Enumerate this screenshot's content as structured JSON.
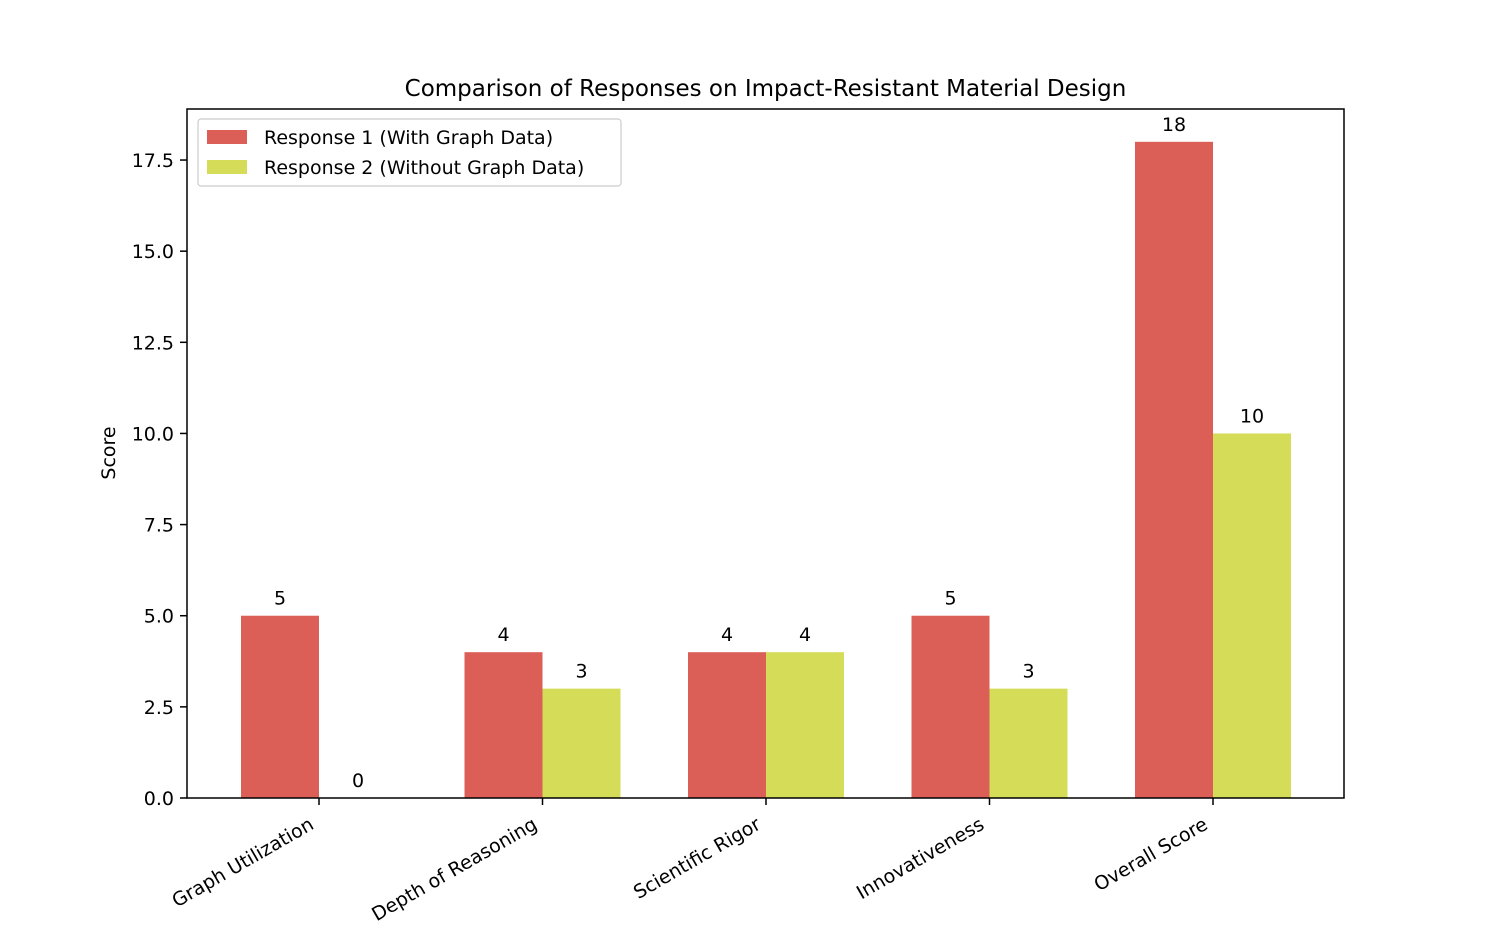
{
  "chart_data": {
    "type": "bar",
    "title": "Comparison of Responses on Impact-Resistant Material Design",
    "xlabel": "",
    "ylabel": "Score",
    "ylim": [
      0,
      18.9
    ],
    "yticks": [
      "0.0",
      "2.5",
      "5.0",
      "7.5",
      "10.0",
      "12.5",
      "15.0",
      "17.5"
    ],
    "categories": [
      "Graph Utilization",
      "Depth of Reasoning",
      "Scientific Rigor",
      "Innovativeness",
      "Overall Score"
    ],
    "series": [
      {
        "name": "Response 1 (With Graph Data)",
        "color": "#dc5f57",
        "values": [
          5,
          4,
          4,
          5,
          18
        ]
      },
      {
        "name": "Response 2 (Without Graph Data)",
        "color": "#d5dc57",
        "values": [
          0,
          3,
          4,
          3,
          10
        ]
      }
    ],
    "legend_position": "top-left",
    "grid": false
  }
}
